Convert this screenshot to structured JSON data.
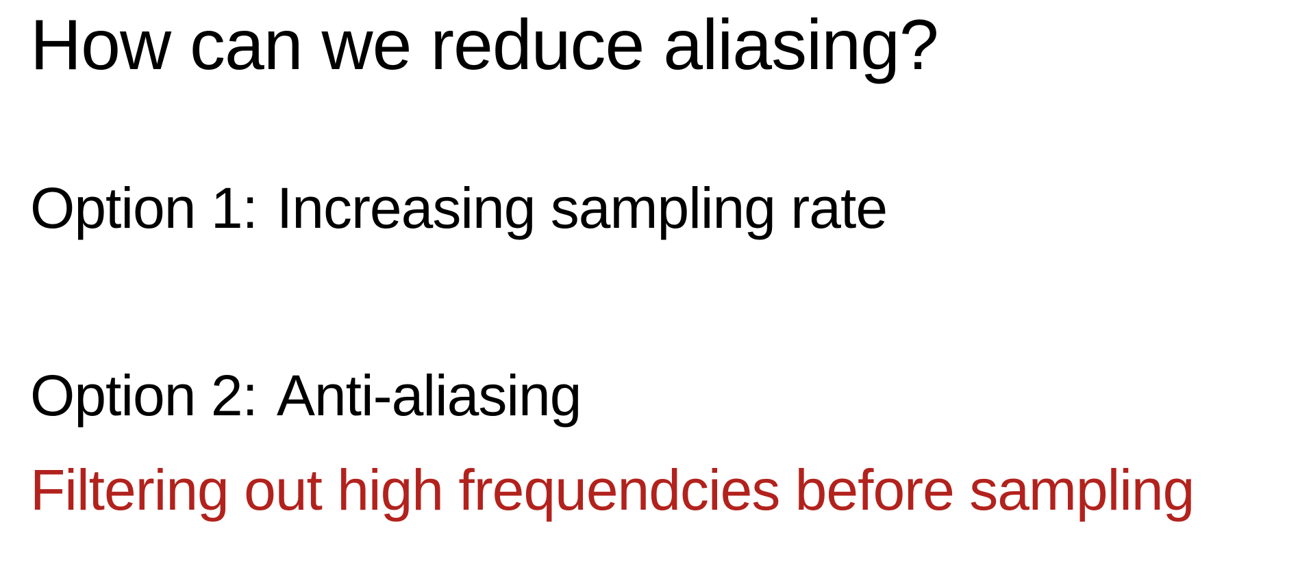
{
  "slide": {
    "title": "How can we reduce aliasing?",
    "option1": {
      "label": "Option 1:",
      "text": "Increasing sampling rate"
    },
    "option2": {
      "label": "Option 2:",
      "text": "Anti-aliasing"
    },
    "detail": "Filtering out high frequendcies before sampling"
  },
  "colors": {
    "text": "#000000",
    "accent": "#b2221d",
    "background": "#ffffff"
  }
}
